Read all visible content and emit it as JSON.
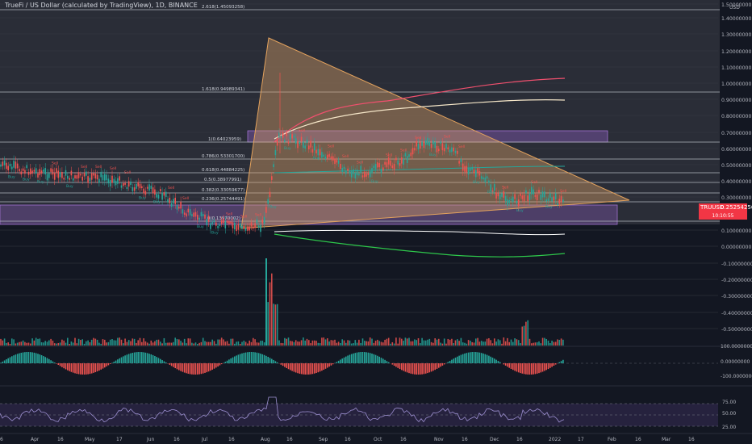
{
  "title": "TrueFi / US Dollar (calculated by TradingView), 1D, BINANCE",
  "currency": "USD",
  "price_tag": {
    "symbol": "TRUUSD",
    "price": "0.25254256",
    "countdown": "10:10:55"
  },
  "price_axis_labels": [
    "1.50000000",
    "1.40000000",
    "1.30000000",
    "1.20000000",
    "1.10000000",
    "1.00000000",
    "0.90000000",
    "0.80000000",
    "0.70000000",
    "0.60000000",
    "0.50000000",
    "0.40000000",
    "0.30000000",
    "0.10000000",
    "0.00000000",
    "-0.10000000",
    "-0.20000000",
    "-0.30000000",
    "-0.40000000",
    "-0.50000000"
  ],
  "fib_labels": [
    "2.618(1.45093258)",
    "1.618(0.94989341)",
    "1(0.64023959)",
    "0.786(0.53301700)",
    "0.618(0.44884225)",
    "0.5(0.38977991)",
    "0.382(0.33059677)",
    "0.236(0.25744491)",
    "0(0.13970002)"
  ],
  "macd_axis_labels": [
    "100.00000000",
    "0.00000000",
    "-100.00000000"
  ],
  "rsi_axis_labels": [
    "75.00",
    "50.00",
    "25.00"
  ],
  "time_axis_labels": [
    "6",
    "Apr",
    "16",
    "May",
    "17",
    "Jun",
    "16",
    "Jul",
    "16",
    "Aug",
    "16",
    "Sep",
    "16",
    "Oct",
    "16",
    "Nov",
    "16",
    "Dec",
    "16",
    "2022",
    "17",
    "Feb",
    "16",
    "Mar",
    "16"
  ],
  "signal_labels": {
    "buy": "Buy",
    "sell": "Sell"
  },
  "colors": {
    "background": "#131722",
    "up": "#26a69a",
    "down": "#ef5350",
    "fib_line": "#b2b5be",
    "zone": "#8e5ec4",
    "triangle": "#d9a066",
    "tag": "#f23645"
  }
}
